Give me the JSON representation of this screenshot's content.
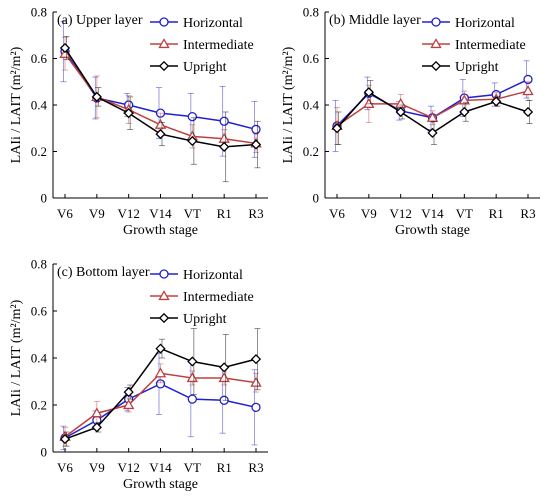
{
  "chart_data": [
    {
      "type": "line",
      "title": "(a) Upper layer",
      "xlabel": "Growth stage",
      "ylabel": "LAIi / LAIT (m²/m²)",
      "ylim": [
        0,
        0.8
      ],
      "yticks": [
        0,
        0.2,
        0.4,
        0.6,
        0.8
      ],
      "ytick_labels": [
        "0",
        "0.2",
        "0.4",
        "0.6",
        "0.8"
      ],
      "categories": [
        "V6",
        "V9",
        "V12",
        "V14",
        "VT",
        "R1",
        "R3"
      ],
      "legend_position": "top-right",
      "series": [
        {
          "name": "Horizontal",
          "color": "#2020d0",
          "marker": "circle",
          "values": [
            0.63,
            0.43,
            0.4,
            0.365,
            0.35,
            0.33,
            0.295
          ],
          "errors": [
            0.13,
            0.09,
            0.05,
            0.11,
            0.1,
            0.15,
            0.12
          ]
        },
        {
          "name": "Intermediate",
          "color": "#c04040",
          "marker": "triangle",
          "values": [
            0.62,
            0.435,
            0.38,
            0.315,
            0.265,
            0.255,
            0.235
          ],
          "errors": [
            0.07,
            0.09,
            0.06,
            0.05,
            0.05,
            0.04,
            0.04
          ]
        },
        {
          "name": "Upright",
          "color": "#000000",
          "marker": "diamond",
          "values": [
            0.645,
            0.435,
            0.365,
            0.275,
            0.245,
            0.22,
            0.23
          ],
          "errors": [
            0.05,
            0.04,
            0.07,
            0.05,
            0.1,
            0.15,
            0.1
          ]
        }
      ]
    },
    {
      "type": "line",
      "title": "(b) Middle layer",
      "xlabel": "Growth stage",
      "ylabel": "LAIi / LAIT (m²/m²)",
      "ylim": [
        0,
        0.8
      ],
      "yticks": [
        0,
        0.2,
        0.4,
        0.6,
        0.8
      ],
      "ytick_labels": [
        "0",
        "0.2",
        "0.4",
        "0.6",
        "0.8"
      ],
      "categories": [
        "V6",
        "V9",
        "V12",
        "V14",
        "VT",
        "R1",
        "R3"
      ],
      "legend_position": "top-right",
      "series": [
        {
          "name": "Horizontal",
          "color": "#2020d0",
          "marker": "circle",
          "values": [
            0.31,
            0.45,
            0.375,
            0.345,
            0.43,
            0.445,
            0.51
          ],
          "errors": [
            0.11,
            0.07,
            0.04,
            0.05,
            0.08,
            0.05,
            0.08
          ]
        },
        {
          "name": "Intermediate",
          "color": "#c04040",
          "marker": "triangle",
          "values": [
            0.31,
            0.405,
            0.405,
            0.345,
            0.42,
            0.425,
            0.46
          ],
          "errors": [
            0.08,
            0.08,
            0.04,
            0.03,
            0.04,
            0.03,
            0.04
          ]
        },
        {
          "name": "Upright",
          "color": "#000000",
          "marker": "diamond",
          "values": [
            0.3,
            0.455,
            0.37,
            0.28,
            0.37,
            0.415,
            0.37
          ],
          "errors": [
            0.07,
            0.05,
            0.03,
            0.05,
            0.04,
            0.02,
            0.05
          ]
        }
      ]
    },
    {
      "type": "line",
      "title": "(c) Bottom layer",
      "xlabel": "Growth stage",
      "ylabel": "LAIi / LAIT (m²/m²)",
      "ylim": [
        0,
        0.8
      ],
      "yticks": [
        0,
        0.2,
        0.4,
        0.6,
        0.8
      ],
      "ytick_labels": [
        "0",
        "0.2",
        "0.4",
        "0.6",
        "0.8"
      ],
      "categories": [
        "V6",
        "V9",
        "V12",
        "V14",
        "VT",
        "R1",
        "R3"
      ],
      "legend_position": "top-right",
      "series": [
        {
          "name": "Horizontal",
          "color": "#2020d0",
          "marker": "circle",
          "values": [
            0.06,
            0.135,
            0.225,
            0.29,
            0.225,
            0.22,
            0.19
          ],
          "errors": [
            0.05,
            0.04,
            0.05,
            0.13,
            0.16,
            0.14,
            0.16
          ]
        },
        {
          "name": "Intermediate",
          "color": "#c04040",
          "marker": "triangle",
          "values": [
            0.065,
            0.165,
            0.2,
            0.335,
            0.315,
            0.315,
            0.295
          ],
          "errors": [
            0.04,
            0.05,
            0.03,
            0.04,
            0.03,
            0.03,
            0.04
          ]
        },
        {
          "name": "Upright",
          "color": "#000000",
          "marker": "diamond",
          "values": [
            0.055,
            0.105,
            0.255,
            0.44,
            0.385,
            0.36,
            0.395
          ],
          "errors": [
            0.03,
            0.02,
            0.03,
            0.04,
            0.14,
            0.14,
            0.13
          ]
        }
      ]
    }
  ]
}
